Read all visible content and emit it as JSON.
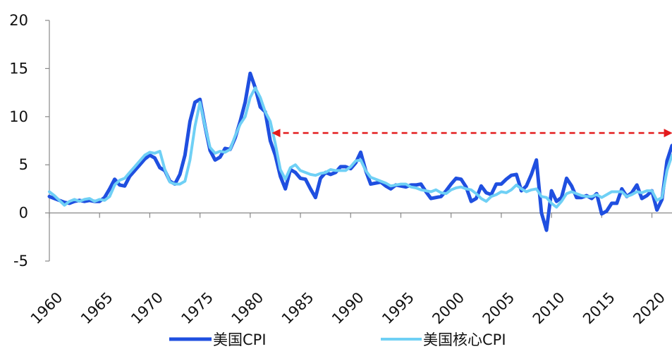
{
  "chart_data": {
    "type": "line",
    "title": "",
    "xlabel": "",
    "ylabel": "",
    "xlim": [
      1960,
      2022
    ],
    "ylim": [
      -5,
      20
    ],
    "x_ticks": [
      "1960",
      "1965",
      "1970",
      "1975",
      "1980",
      "1985",
      "1990",
      "1995",
      "2000",
      "2005",
      "2010",
      "2015",
      "2020"
    ],
    "y_ticks": [
      "20",
      "15",
      "10",
      "5",
      "0",
      "-5"
    ],
    "grid": false,
    "legend_position": "bottom",
    "series": [
      {
        "name": "美国CPI",
        "color": "#1f4fe0",
        "points": [
          [
            1960.0,
            1.7
          ],
          [
            1960.5,
            1.5
          ],
          [
            1961.0,
            1.3
          ],
          [
            1961.5,
            1.1
          ],
          [
            1962.0,
            1.0
          ],
          [
            1962.5,
            1.2
          ],
          [
            1963.0,
            1.3
          ],
          [
            1963.5,
            1.2
          ],
          [
            1964.0,
            1.3
          ],
          [
            1964.5,
            1.2
          ],
          [
            1965.0,
            1.2
          ],
          [
            1965.5,
            1.6
          ],
          [
            1966.0,
            2.5
          ],
          [
            1966.5,
            3.5
          ],
          [
            1967.0,
            2.9
          ],
          [
            1967.5,
            2.8
          ],
          [
            1968.0,
            3.8
          ],
          [
            1968.5,
            4.4
          ],
          [
            1969.0,
            5.0
          ],
          [
            1969.5,
            5.6
          ],
          [
            1970.0,
            6.0
          ],
          [
            1970.5,
            5.7
          ],
          [
            1971.0,
            4.7
          ],
          [
            1971.5,
            4.4
          ],
          [
            1972.0,
            3.3
          ],
          [
            1972.5,
            3.0
          ],
          [
            1973.0,
            4.0
          ],
          [
            1973.5,
            6.0
          ],
          [
            1974.0,
            9.5
          ],
          [
            1974.5,
            11.5
          ],
          [
            1975.0,
            11.8
          ],
          [
            1975.5,
            9.0
          ],
          [
            1976.0,
            6.5
          ],
          [
            1976.5,
            5.5
          ],
          [
            1977.0,
            5.8
          ],
          [
            1977.5,
            6.7
          ],
          [
            1978.0,
            6.6
          ],
          [
            1978.5,
            7.8
          ],
          [
            1979.0,
            9.5
          ],
          [
            1979.5,
            11.5
          ],
          [
            1980.0,
            14.5
          ],
          [
            1980.5,
            13.0
          ],
          [
            1981.0,
            11.0
          ],
          [
            1981.5,
            10.5
          ],
          [
            1982.0,
            7.5
          ],
          [
            1982.5,
            6.0
          ],
          [
            1983.0,
            3.8
          ],
          [
            1983.5,
            2.5
          ],
          [
            1984.0,
            4.5
          ],
          [
            1984.5,
            4.2
          ],
          [
            1985.0,
            3.6
          ],
          [
            1985.5,
            3.5
          ],
          [
            1986.0,
            2.5
          ],
          [
            1986.5,
            1.6
          ],
          [
            1987.0,
            3.6
          ],
          [
            1987.5,
            4.2
          ],
          [
            1988.0,
            4.0
          ],
          [
            1988.5,
            4.2
          ],
          [
            1989.0,
            4.8
          ],
          [
            1989.5,
            4.8
          ],
          [
            1990.0,
            4.6
          ],
          [
            1990.5,
            5.2
          ],
          [
            1991.0,
            6.3
          ],
          [
            1991.5,
            4.4
          ],
          [
            1992.0,
            3.0
          ],
          [
            1992.5,
            3.1
          ],
          [
            1993.0,
            3.2
          ],
          [
            1993.5,
            2.8
          ],
          [
            1994.0,
            2.5
          ],
          [
            1994.5,
            2.9
          ],
          [
            1995.0,
            2.8
          ],
          [
            1995.5,
            2.7
          ],
          [
            1996.0,
            2.9
          ],
          [
            1996.5,
            2.9
          ],
          [
            1997.0,
            3.0
          ],
          [
            1997.5,
            2.2
          ],
          [
            1998.0,
            1.5
          ],
          [
            1998.5,
            1.6
          ],
          [
            1999.0,
            1.7
          ],
          [
            1999.5,
            2.3
          ],
          [
            2000.0,
            3.0
          ],
          [
            2000.5,
            3.6
          ],
          [
            2001.0,
            3.5
          ],
          [
            2001.5,
            2.7
          ],
          [
            2002.0,
            1.2
          ],
          [
            2002.5,
            1.5
          ],
          [
            2003.0,
            2.8
          ],
          [
            2003.5,
            2.1
          ],
          [
            2004.0,
            1.9
          ],
          [
            2004.5,
            3.0
          ],
          [
            2005.0,
            3.0
          ],
          [
            2005.5,
            3.5
          ],
          [
            2006.0,
            3.9
          ],
          [
            2006.5,
            4.0
          ],
          [
            2007.0,
            2.3
          ],
          [
            2007.5,
            2.8
          ],
          [
            2008.0,
            4.0
          ],
          [
            2008.5,
            5.5
          ],
          [
            2009.0,
            0.0
          ],
          [
            2009.5,
            -1.8
          ],
          [
            2010.0,
            2.3
          ],
          [
            2010.5,
            1.2
          ],
          [
            2011.0,
            1.6
          ],
          [
            2011.5,
            3.6
          ],
          [
            2012.0,
            2.8
          ],
          [
            2012.5,
            1.6
          ],
          [
            2013.0,
            1.6
          ],
          [
            2013.5,
            1.8
          ],
          [
            2014.0,
            1.5
          ],
          [
            2014.5,
            2.0
          ],
          [
            2015.0,
            -0.1
          ],
          [
            2015.5,
            0.2
          ],
          [
            2016.0,
            1.0
          ],
          [
            2016.5,
            1.0
          ],
          [
            2017.0,
            2.5
          ],
          [
            2017.5,
            1.7
          ],
          [
            2018.0,
            2.1
          ],
          [
            2018.5,
            2.9
          ],
          [
            2019.0,
            1.5
          ],
          [
            2019.5,
            1.8
          ],
          [
            2020.0,
            2.3
          ],
          [
            2020.5,
            0.3
          ],
          [
            2021.0,
            1.4
          ],
          [
            2021.5,
            5.4
          ],
          [
            2022.0,
            7.0
          ]
        ]
      },
      {
        "name": "美国核心CPI",
        "color": "#6fd0f5",
        "points": [
          [
            1960.0,
            2.2
          ],
          [
            1960.5,
            1.8
          ],
          [
            1961.0,
            1.3
          ],
          [
            1961.5,
            0.8
          ],
          [
            1962.0,
            1.2
          ],
          [
            1962.5,
            1.4
          ],
          [
            1963.0,
            1.2
          ],
          [
            1963.5,
            1.4
          ],
          [
            1964.0,
            1.5
          ],
          [
            1964.5,
            1.2
          ],
          [
            1965.0,
            1.4
          ],
          [
            1965.5,
            1.3
          ],
          [
            1966.0,
            1.7
          ],
          [
            1966.5,
            2.9
          ],
          [
            1967.0,
            3.4
          ],
          [
            1967.5,
            3.6
          ],
          [
            1968.0,
            4.2
          ],
          [
            1968.5,
            4.8
          ],
          [
            1969.0,
            5.4
          ],
          [
            1969.5,
            6.0
          ],
          [
            1970.0,
            6.3
          ],
          [
            1970.5,
            6.2
          ],
          [
            1971.0,
            6.4
          ],
          [
            1971.5,
            4.5
          ],
          [
            1972.0,
            3.2
          ],
          [
            1972.5,
            3.0
          ],
          [
            1973.0,
            3.0
          ],
          [
            1973.5,
            3.3
          ],
          [
            1974.0,
            5.5
          ],
          [
            1974.5,
            9.0
          ],
          [
            1975.0,
            11.5
          ],
          [
            1975.5,
            9.0
          ],
          [
            1976.0,
            6.8
          ],
          [
            1976.5,
            6.2
          ],
          [
            1977.0,
            6.4
          ],
          [
            1977.5,
            6.3
          ],
          [
            1978.0,
            6.6
          ],
          [
            1978.5,
            8.0
          ],
          [
            1979.0,
            9.2
          ],
          [
            1979.5,
            10.0
          ],
          [
            1980.0,
            12.0
          ],
          [
            1980.5,
            13.0
          ],
          [
            1981.0,
            12.0
          ],
          [
            1981.5,
            10.5
          ],
          [
            1982.0,
            9.5
          ],
          [
            1982.5,
            7.2
          ],
          [
            1983.0,
            4.5
          ],
          [
            1983.5,
            3.5
          ],
          [
            1984.0,
            4.7
          ],
          [
            1984.5,
            5.0
          ],
          [
            1985.0,
            4.4
          ],
          [
            1985.5,
            4.2
          ],
          [
            1986.0,
            4.0
          ],
          [
            1986.5,
            3.9
          ],
          [
            1987.0,
            4.1
          ],
          [
            1987.5,
            4.2
          ],
          [
            1988.0,
            4.5
          ],
          [
            1988.5,
            4.4
          ],
          [
            1989.0,
            4.4
          ],
          [
            1989.5,
            4.4
          ],
          [
            1990.0,
            4.8
          ],
          [
            1990.5,
            5.4
          ],
          [
            1991.0,
            5.5
          ],
          [
            1991.5,
            4.4
          ],
          [
            1992.0,
            3.7
          ],
          [
            1992.5,
            3.5
          ],
          [
            1993.0,
            3.3
          ],
          [
            1993.5,
            3.1
          ],
          [
            1994.0,
            2.8
          ],
          [
            1994.5,
            2.9
          ],
          [
            1995.0,
            3.0
          ],
          [
            1995.5,
            3.0
          ],
          [
            1996.0,
            2.7
          ],
          [
            1996.5,
            2.6
          ],
          [
            1997.0,
            2.4
          ],
          [
            1997.5,
            2.3
          ],
          [
            1998.0,
            2.2
          ],
          [
            1998.5,
            2.4
          ],
          [
            1999.0,
            2.1
          ],
          [
            1999.5,
            2.0
          ],
          [
            2000.0,
            2.4
          ],
          [
            2000.5,
            2.6
          ],
          [
            2001.0,
            2.7
          ],
          [
            2001.5,
            2.5
          ],
          [
            2002.0,
            2.4
          ],
          [
            2002.5,
            2.0
          ],
          [
            2003.0,
            1.5
          ],
          [
            2003.5,
            1.2
          ],
          [
            2004.0,
            1.7
          ],
          [
            2004.5,
            1.9
          ],
          [
            2005.0,
            2.2
          ],
          [
            2005.5,
            2.1
          ],
          [
            2006.0,
            2.4
          ],
          [
            2006.5,
            2.9
          ],
          [
            2007.0,
            2.5
          ],
          [
            2007.5,
            2.2
          ],
          [
            2008.0,
            2.4
          ],
          [
            2008.5,
            2.5
          ],
          [
            2009.0,
            1.7
          ],
          [
            2009.5,
            1.6
          ],
          [
            2010.0,
            1.0
          ],
          [
            2010.5,
            0.6
          ],
          [
            2011.0,
            1.2
          ],
          [
            2011.5,
            2.0
          ],
          [
            2012.0,
            2.2
          ],
          [
            2012.5,
            2.0
          ],
          [
            2013.0,
            1.8
          ],
          [
            2013.5,
            1.7
          ],
          [
            2014.0,
            1.7
          ],
          [
            2014.5,
            1.9
          ],
          [
            2015.0,
            1.6
          ],
          [
            2015.5,
            1.9
          ],
          [
            2016.0,
            2.2
          ],
          [
            2016.5,
            2.2
          ],
          [
            2017.0,
            2.2
          ],
          [
            2017.5,
            1.7
          ],
          [
            2018.0,
            1.9
          ],
          [
            2018.5,
            2.2
          ],
          [
            2019.0,
            2.1
          ],
          [
            2019.5,
            2.3
          ],
          [
            2020.0,
            2.3
          ],
          [
            2020.5,
            1.3
          ],
          [
            2021.0,
            1.6
          ],
          [
            2021.5,
            4.4
          ],
          [
            2022.0,
            6.0
          ]
        ]
      }
    ],
    "annotations": [
      {
        "type": "double-arrow",
        "style": "dashed",
        "color": "#e31a1c",
        "x_start": 1982.3,
        "x_end": 2021.9,
        "y": 8.3
      }
    ]
  }
}
